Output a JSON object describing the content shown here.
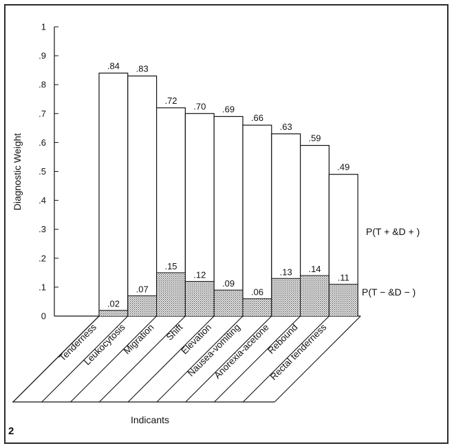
{
  "figure_number": "2",
  "chart_data": {
    "type": "bar",
    "title": "",
    "xlabel": "Indicants",
    "ylabel": "Diagnostic Weight",
    "ylim": [
      0,
      1
    ],
    "yticks": [
      "0",
      ".1",
      ".2",
      ".3",
      ".4",
      ".5",
      ".6",
      ".7",
      ".8",
      ".9",
      "1"
    ],
    "categories": [
      "Tenderness",
      "Leukocytosis",
      "Migration",
      "Shift",
      "Elevation",
      "Nausea-vomiting",
      "Anorexia-acetone",
      "Rebound",
      "Rectal tenderness"
    ],
    "series": [
      {
        "name": "P(T + &D + )",
        "values": [
          0.84,
          0.83,
          0.72,
          0.7,
          0.69,
          0.66,
          0.63,
          0.59,
          0.49
        ],
        "labels": [
          ".84",
          ".83",
          ".72",
          ".70",
          ".69",
          ".66",
          ".63",
          ".59",
          ".49"
        ]
      },
      {
        "name": "P(T − &D − )",
        "values": [
          0.02,
          0.07,
          0.15,
          0.12,
          0.09,
          0.06,
          0.13,
          0.14,
          0.11
        ],
        "labels": [
          ".02",
          ".07",
          ".15",
          ".12",
          ".09",
          ".06",
          ".13",
          ".14",
          ".11"
        ]
      }
    ]
  }
}
